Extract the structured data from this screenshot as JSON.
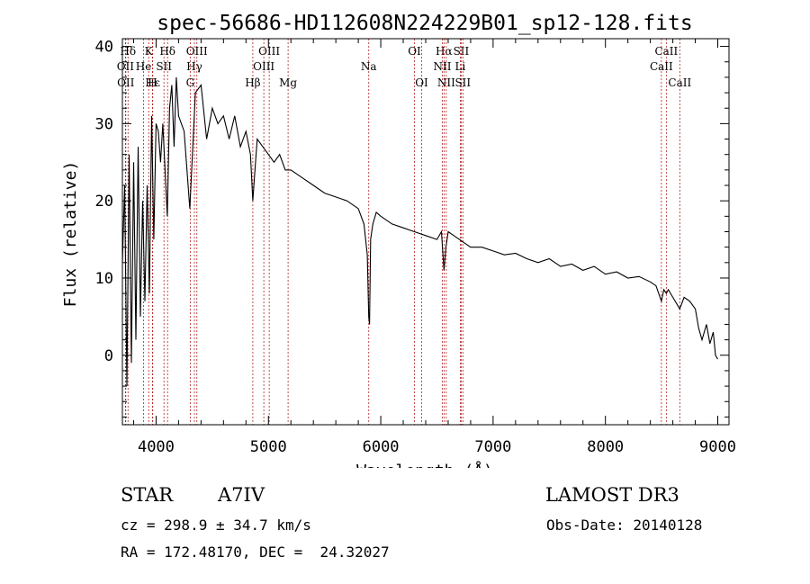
{
  "chart_data": {
    "type": "line",
    "title": "spec-56686-HD112608N224229B01_sp12-128.fits",
    "xlabel": "Wavelength (Å)",
    "ylabel": "Flux (relative)",
    "xlim": [
      3700,
      9100
    ],
    "ylim": [
      -9,
      41
    ],
    "x_ticks": [
      4000,
      5000,
      6000,
      7000,
      8000,
      9000
    ],
    "y_ticks": [
      0,
      10,
      20,
      30,
      40
    ],
    "series": [
      {
        "name": "spectrum",
        "x": [
          3700,
          3720,
          3740,
          3760,
          3780,
          3800,
          3820,
          3840,
          3860,
          3880,
          3900,
          3920,
          3940,
          3960,
          3980,
          4000,
          4020,
          4040,
          4060,
          4080,
          4100,
          4120,
          4140,
          4160,
          4180,
          4200,
          4250,
          4300,
          4350,
          4400,
          4450,
          4500,
          4550,
          4600,
          4650,
          4700,
          4750,
          4800,
          4840,
          4861,
          4880,
          4900,
          4950,
          5000,
          5050,
          5100,
          5150,
          5200,
          5300,
          5400,
          5500,
          5600,
          5700,
          5800,
          5850,
          5880,
          5893,
          5900,
          5910,
          5930,
          5960,
          6000,
          6100,
          6200,
          6300,
          6400,
          6500,
          6540,
          6563,
          6580,
          6600,
          6650,
          6700,
          6750,
          6800,
          6900,
          7000,
          7100,
          7200,
          7300,
          7400,
          7500,
          7600,
          7700,
          7800,
          7900,
          8000,
          8100,
          8200,
          8300,
          8400,
          8450,
          8498,
          8520,
          8542,
          8560,
          8600,
          8662,
          8700,
          8750,
          8800,
          8830,
          8860,
          8900,
          8930,
          8960,
          8980,
          9000
        ],
        "values": [
          12,
          22,
          -4,
          26,
          -1,
          25,
          2,
          27,
          5,
          20,
          7,
          22,
          8,
          31,
          15,
          30,
          29,
          25,
          30,
          24,
          18,
          32,
          35,
          27,
          36,
          31,
          29,
          19,
          34,
          35,
          28,
          32,
          30,
          31,
          28,
          31,
          27,
          29,
          26,
          20,
          24,
          28,
          27,
          26,
          25,
          26,
          24,
          24,
          23,
          22,
          21,
          20.5,
          20,
          19,
          17,
          13,
          5,
          4,
          15,
          17,
          18.5,
          18,
          17,
          16.5,
          16,
          15.5,
          15,
          16,
          11,
          14,
          16,
          15.5,
          15,
          14.5,
          14,
          14,
          13.5,
          13,
          13.2,
          12.5,
          12,
          12.5,
          11.5,
          11.8,
          11,
          11.5,
          10.5,
          10.8,
          10,
          10.2,
          9.5,
          9,
          7,
          8.5,
          8,
          8.5,
          7.5,
          6,
          7.5,
          7,
          6,
          3.5,
          2,
          4,
          1.5,
          3,
          0,
          -0.5
        ]
      }
    ],
    "line_markers": [
      {
        "label": "Hδ",
        "x": 3750,
        "row": 0
      },
      {
        "label": "K",
        "x": 3934,
        "row": 0
      },
      {
        "label": "Hδ",
        "x": 4102,
        "row": 0
      },
      {
        "label": "OII",
        "x": 3727,
        "row": 1
      },
      {
        "label": "He",
        "x": 3889,
        "row": 1
      },
      {
        "label": "SII",
        "x": 4070,
        "row": 1
      },
      {
        "label": "OII",
        "x": 3730,
        "row": 2
      },
      {
        "label": "Hε",
        "x": 3970,
        "row": 2
      },
      {
        "label": "H",
        "x": 3968,
        "row": 2
      },
      {
        "label": "OIII",
        "x": 4363,
        "row": 0
      },
      {
        "label": "Hγ",
        "x": 4341,
        "row": 1
      },
      {
        "label": "G",
        "x": 4304,
        "row": 2
      },
      {
        "label": "OIII",
        "x": 5007,
        "row": 0
      },
      {
        "label": "OIII",
        "x": 4959,
        "row": 1
      },
      {
        "label": "Hβ",
        "x": 4861,
        "row": 2
      },
      {
        "label": "Mg",
        "x": 5175,
        "row": 2
      },
      {
        "label": "Na",
        "x": 5893,
        "row": 1
      },
      {
        "label": "OI",
        "x": 6300,
        "row": 0
      },
      {
        "label": "OI",
        "x": 6364,
        "row": 2
      },
      {
        "label": "Hα",
        "x": 6563,
        "row": 0
      },
      {
        "label": "SII",
        "x": 6716,
        "row": 0
      },
      {
        "label": "NII",
        "x": 6548,
        "row": 1
      },
      {
        "label": "Li",
        "x": 6708,
        "row": 1
      },
      {
        "label": "NII",
        "x": 6583,
        "row": 2
      },
      {
        "label": "SII",
        "x": 6731,
        "row": 2
      },
      {
        "label": "CaII",
        "x": 8542,
        "row": 0
      },
      {
        "label": "CaII",
        "x": 8498,
        "row": 1
      },
      {
        "label": "CaII",
        "x": 8662,
        "row": 2
      }
    ]
  },
  "info": {
    "object_type": "STAR",
    "spectral_class": "A7IV",
    "survey": "LAMOST DR3",
    "cz": "cz = 298.9 ± 34.7 km/s",
    "obs_date": "Obs-Date: 20140128",
    "coords": "RA = 172.48170, DEC =  24.32027"
  },
  "colors": {
    "line": "#000000",
    "marker": "#b22222"
  }
}
